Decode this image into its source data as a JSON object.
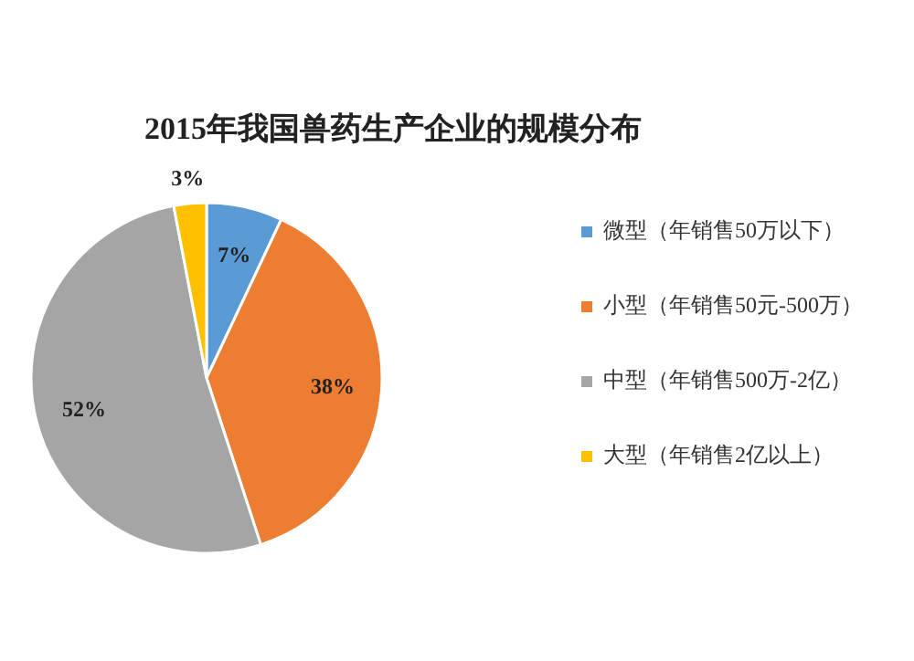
{
  "chart_data": {
    "type": "pie",
    "title": "2015年我国兽药生产企业的规模分布",
    "categories": [
      "微型（年销售50万以下）",
      "小型（年销售50元-500万）",
      "中型（年销售500万-2亿）",
      "大型（年销售2亿以上）"
    ],
    "values": [
      7,
      38,
      52,
      3
    ],
    "colors": [
      "#5b9bd5",
      "#ed7d31",
      "#a5a5a5",
      "#ffc000"
    ],
    "value_labels": [
      "7%",
      "38%",
      "52%",
      "3%"
    ],
    "legend": "right"
  }
}
